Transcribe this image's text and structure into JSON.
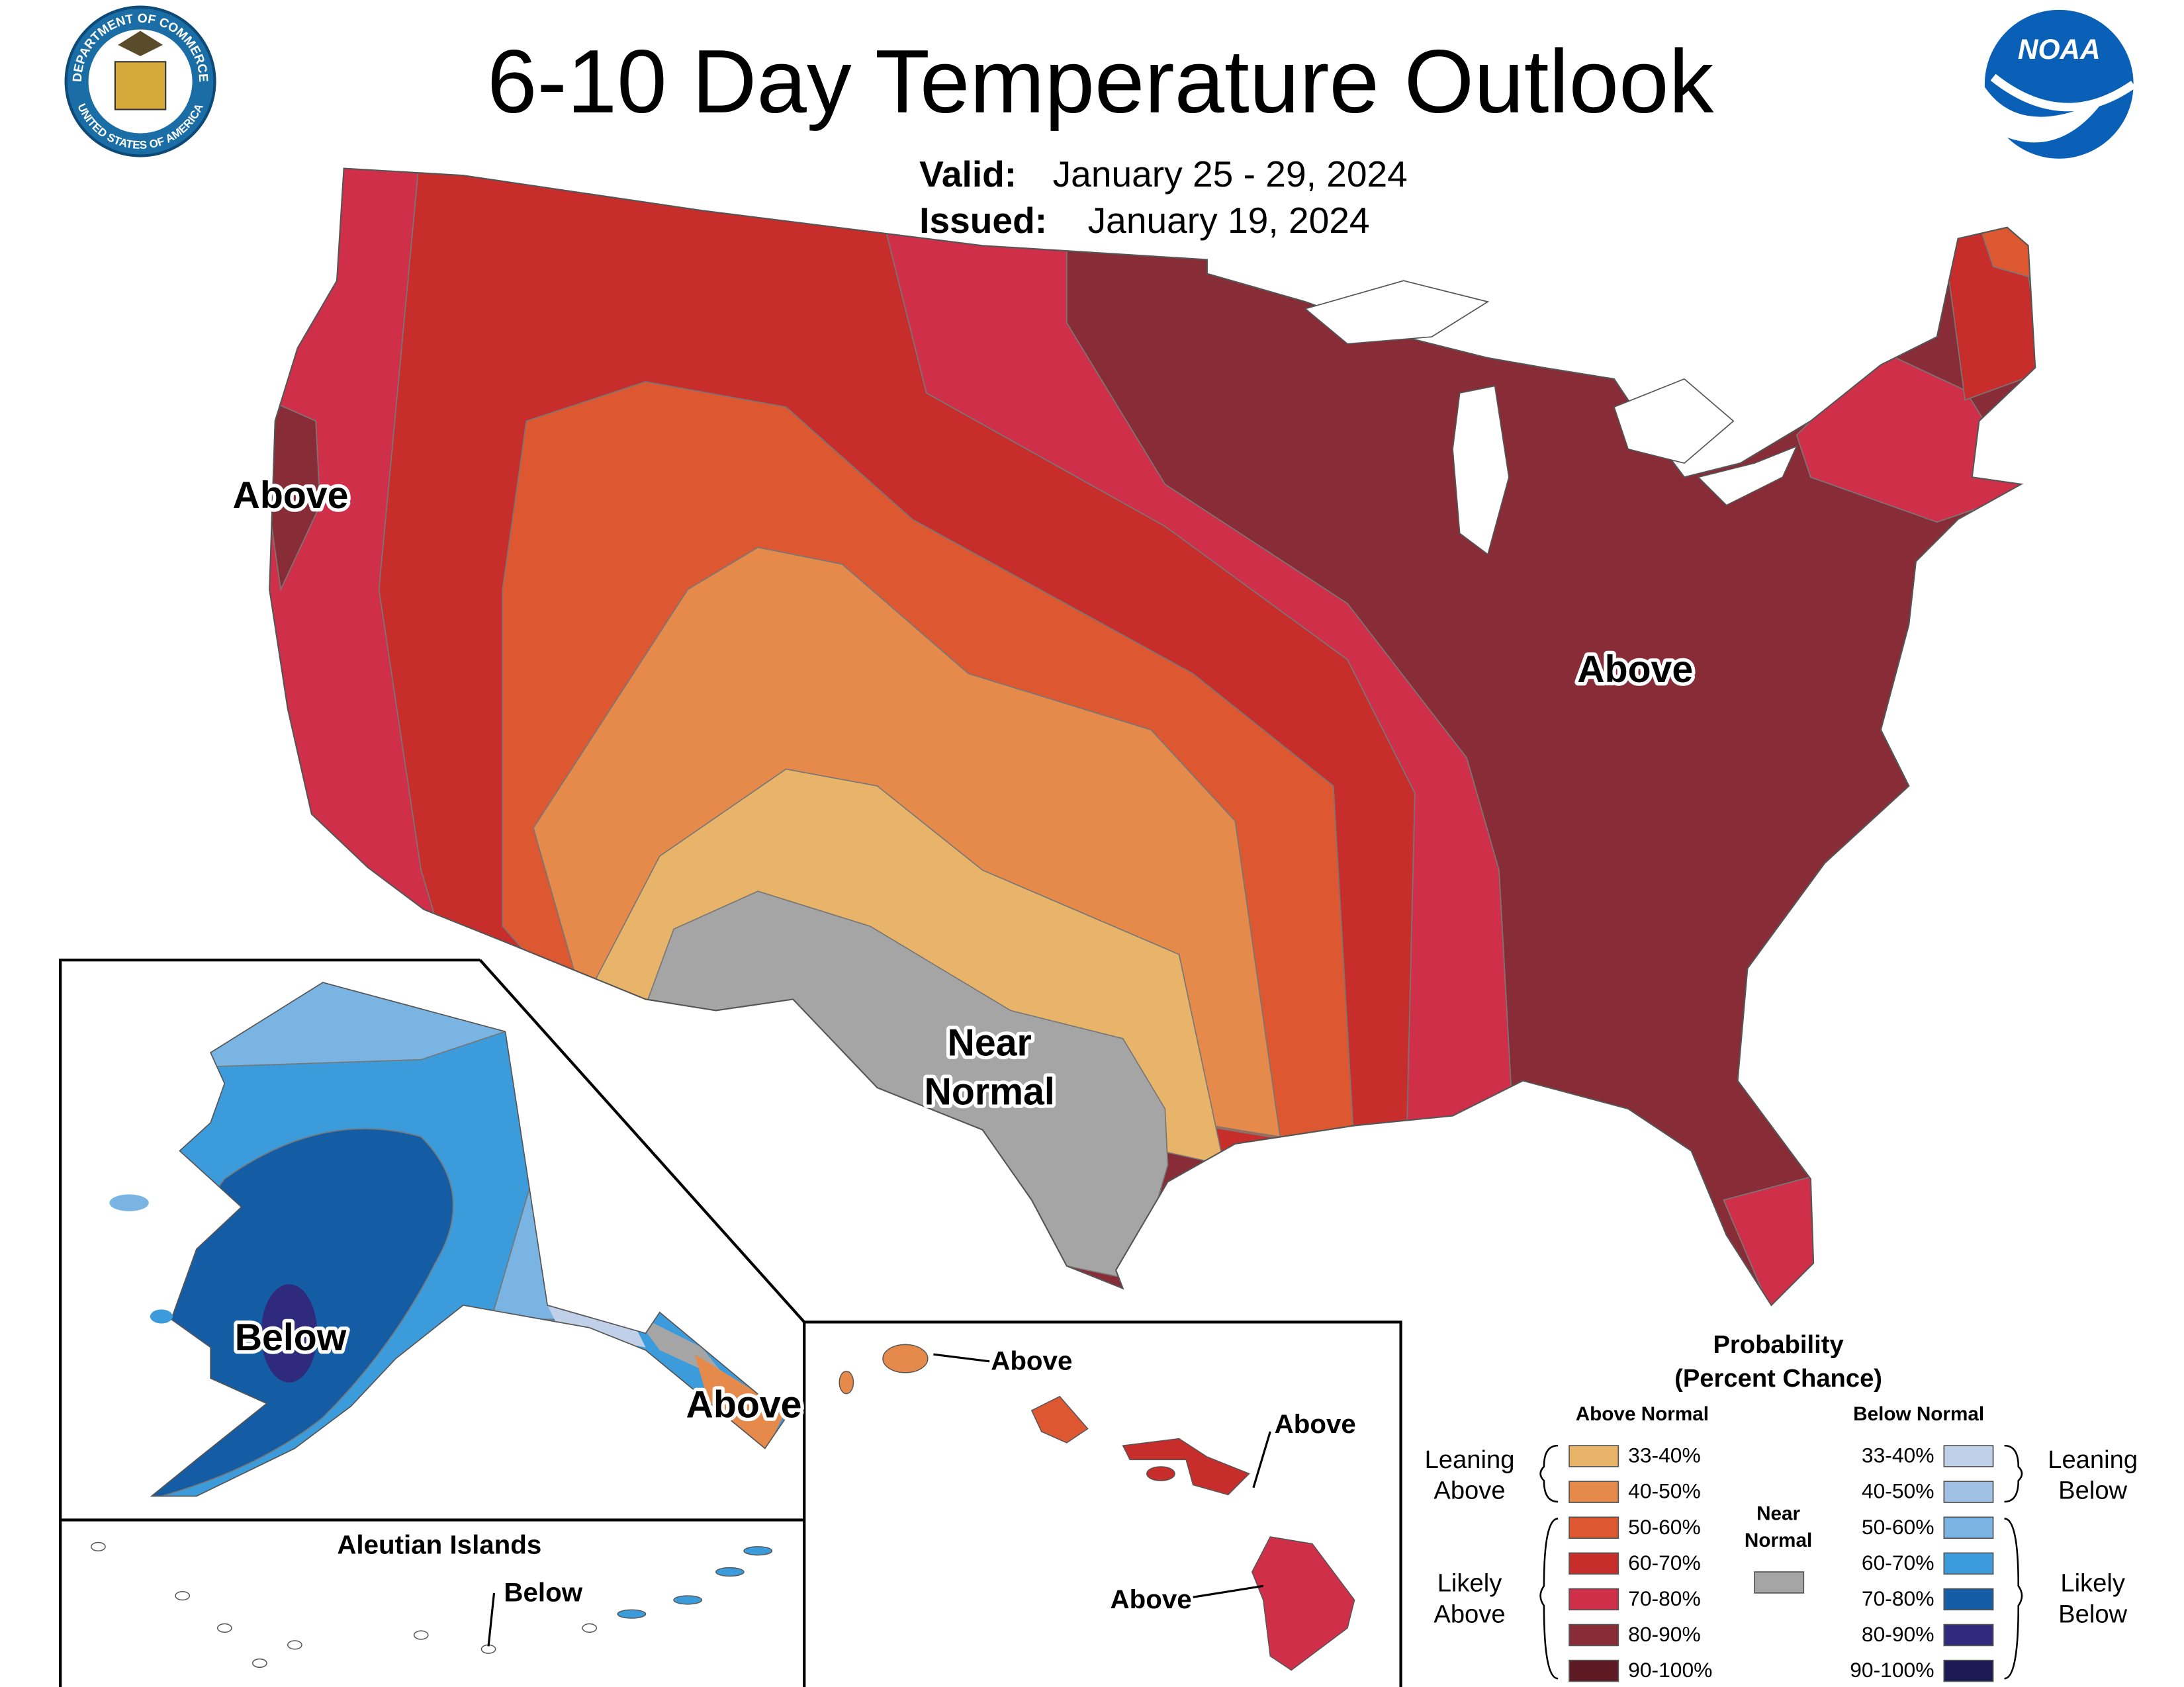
{
  "header": {
    "title": "6-10 Day Temperature Outlook",
    "valid_label": "Valid:",
    "valid_value": "January 25 - 29, 2024",
    "issued_label": "Issued:",
    "issued_value": "January 19, 2024"
  },
  "logos": {
    "noaa": "NOAA",
    "seal_top": "DEPARTMENT OF COMMERCE",
    "seal_bottom": "UNITED STATES OF AMERICA"
  },
  "map_labels": [
    "Above",
    "Above",
    "Near",
    "Normal",
    "Below",
    "Above",
    "Above",
    "Above",
    "Above",
    "Aleutian Islands",
    "Below"
  ],
  "legend": {
    "title": [
      "Probability",
      "(Percent Chance)"
    ],
    "above_heading": "Above Normal",
    "below_heading": "Below Normal",
    "above_ranges": [
      "33-40%",
      "40-50%",
      "50-60%",
      "60-70%",
      "70-80%",
      "80-90%",
      "90-100%"
    ],
    "below_ranges": [
      "33-40%",
      "40-50%",
      "50-60%",
      "60-70%",
      "70-80%",
      "80-90%",
      "90-100%"
    ],
    "above_colors": [
      "#e8b46a",
      "#e58a4a",
      "#dd5730",
      "#c62d2b",
      "#d02f4a",
      "#882c37",
      "#5e1a22"
    ],
    "below_colors": [
      "#bfd0e8",
      "#a1c1e4",
      "#7ab4e2",
      "#3c9bdb",
      "#145ca3",
      "#2f2a7c",
      "#1c1a55"
    ],
    "near_label": [
      "Near",
      "Normal"
    ],
    "near_color": "#a5a5a5",
    "leaning_above": [
      "Leaning",
      "Above"
    ],
    "likely_above": [
      "Likely",
      "Above"
    ],
    "leaning_below": [
      "Leaning",
      "Below"
    ],
    "likely_below": [
      "Likely",
      "Below"
    ]
  }
}
